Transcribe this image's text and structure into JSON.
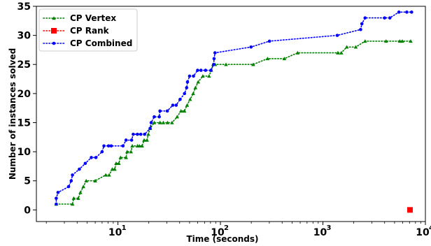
{
  "chart_data": {
    "type": "line",
    "xlabel": "Time (seconds)",
    "ylabel": "Number of instances solved",
    "x_scale": "log",
    "xlim": [
      1.6,
      10000
    ],
    "ylim": [
      -2,
      35
    ],
    "x_ticks": [
      10,
      100,
      1000,
      10000
    ],
    "x_tick_labels": [
      "10",
      "10",
      "10",
      "10"
    ],
    "x_tick_exponents": [
      "1",
      "2",
      "3",
      "4"
    ],
    "y_ticks": [
      0,
      5,
      10,
      15,
      20,
      25,
      30,
      35
    ],
    "grid": false,
    "legend_position": "top-left",
    "series": [
      {
        "name": "CP Vertex",
        "color": "#008000",
        "marker": "triangle",
        "linestyle": "dotted",
        "points": [
          [
            2.5,
            1
          ],
          [
            3.6,
            1
          ],
          [
            3.7,
            2
          ],
          [
            4.1,
            2
          ],
          [
            4.3,
            3
          ],
          [
            4.6,
            4
          ],
          [
            4.9,
            5
          ],
          [
            6.0,
            5
          ],
          [
            7.6,
            6
          ],
          [
            8.2,
            6
          ],
          [
            8.8,
            7
          ],
          [
            9.3,
            7
          ],
          [
            9.6,
            8
          ],
          [
            10.2,
            8
          ],
          [
            10.6,
            9
          ],
          [
            12.0,
            9
          ],
          [
            12.3,
            10
          ],
          [
            13.4,
            10
          ],
          [
            13.8,
            11
          ],
          [
            15.5,
            11
          ],
          [
            16.2,
            11
          ],
          [
            17.2,
            11
          ],
          [
            18.0,
            12
          ],
          [
            19.2,
            12
          ],
          [
            19.8,
            13
          ],
          [
            20.6,
            14
          ],
          [
            22.6,
            15
          ],
          [
            25.7,
            15
          ],
          [
            27.7,
            15
          ],
          [
            30.5,
            15
          ],
          [
            33.7,
            15
          ],
          [
            37.8,
            16
          ],
          [
            41.2,
            17
          ],
          [
            44.5,
            17
          ],
          [
            47.3,
            18
          ],
          [
            50.6,
            19
          ],
          [
            54.2,
            20
          ],
          [
            57.0,
            21
          ],
          [
            60.7,
            22
          ],
          [
            67.3,
            23
          ],
          [
            77.4,
            23
          ],
          [
            81.3,
            24
          ],
          [
            84.9,
            25
          ],
          [
            88.8,
            25
          ],
          [
            113.3,
            25
          ],
          [
            209.0,
            25
          ],
          [
            288.6,
            26
          ],
          [
            420.4,
            26
          ],
          [
            566.3,
            27
          ],
          [
            1399.9,
            27
          ],
          [
            1512.2,
            27
          ],
          [
            1709.8,
            28
          ],
          [
            2090.6,
            28
          ],
          [
            2578.9,
            29
          ],
          [
            4133.9,
            29
          ],
          [
            5625.9,
            29
          ],
          [
            5955.9,
            29
          ],
          [
            7186.7,
            29
          ]
        ]
      },
      {
        "name": "CP Rank",
        "color": "#ff0000",
        "marker": "square",
        "linestyle": "dotted",
        "points": [
          [
            7072.2,
            0
          ]
        ]
      },
      {
        "name": "CP Combined",
        "color": "#0000ff",
        "marker": "circle",
        "linestyle": "dotted",
        "points": [
          [
            2.5,
            1
          ],
          [
            2.5,
            2
          ],
          [
            2.6,
            3
          ],
          [
            3.3,
            4
          ],
          [
            3.5,
            5
          ],
          [
            3.6,
            6
          ],
          [
            4.2,
            7
          ],
          [
            4.8,
            8
          ],
          [
            5.5,
            9
          ],
          [
            6.1,
            9
          ],
          [
            7.0,
            10
          ],
          [
            7.3,
            11
          ],
          [
            8.1,
            11
          ],
          [
            8.6,
            11
          ],
          [
            11.2,
            11
          ],
          [
            12.0,
            12
          ],
          [
            13.6,
            12
          ],
          [
            14.1,
            13
          ],
          [
            15.5,
            13
          ],
          [
            16.7,
            13
          ],
          [
            18.2,
            13
          ],
          [
            20.6,
            14
          ],
          [
            21.1,
            15
          ],
          [
            22.6,
            16
          ],
          [
            25.3,
            16
          ],
          [
            25.7,
            17
          ],
          [
            30.3,
            17
          ],
          [
            34.3,
            18
          ],
          [
            37.0,
            18
          ],
          [
            40.4,
            19
          ],
          [
            44.6,
            20
          ],
          [
            46.8,
            21
          ],
          [
            47.7,
            22
          ],
          [
            50.0,
            23
          ],
          [
            54.6,
            23
          ],
          [
            59.9,
            24
          ],
          [
            64.6,
            24
          ],
          [
            71.6,
            24
          ],
          [
            80.8,
            24
          ],
          [
            85.9,
            25
          ],
          [
            86.7,
            26
          ],
          [
            88.5,
            27
          ],
          [
            199.0,
            28
          ],
          [
            301.0,
            29
          ],
          [
            1379.6,
            30
          ],
          [
            2333.5,
            31
          ],
          [
            2399.5,
            32
          ],
          [
            2578.9,
            33
          ],
          [
            3998.2,
            33
          ],
          [
            4497.0,
            33
          ],
          [
            5516.1,
            34
          ],
          [
            6587.7,
            34
          ],
          [
            7338.0,
            34
          ]
        ]
      }
    ]
  }
}
